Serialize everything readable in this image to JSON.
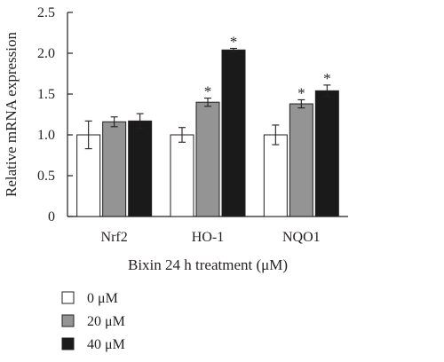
{
  "chart_data": {
    "type": "bar",
    "categories": [
      "Nrf2",
      "HO-1",
      "NQO1"
    ],
    "series": [
      {
        "name": "0 μM",
        "values": [
          1.0,
          1.0,
          1.0
        ],
        "errors": [
          0.17,
          0.09,
          0.12
        ],
        "color": "#ffffff"
      },
      {
        "name": "20 μM",
        "values": [
          1.16,
          1.4,
          1.38
        ],
        "errors": [
          0.06,
          0.05,
          0.05
        ],
        "color": "#949494"
      },
      {
        "name": "40 μM",
        "values": [
          1.17,
          2.04,
          1.54
        ],
        "errors": [
          0.09,
          0.02,
          0.07
        ],
        "color": "#1a1a1a"
      }
    ],
    "significance": [
      [
        false,
        false,
        false
      ],
      [
        false,
        true,
        true
      ],
      [
        false,
        true,
        true
      ]
    ],
    "significance_marker": "*",
    "xlabel": "Bixin 24 h treatment (μM)",
    "ylabel": "Relative mRNA expression",
    "ylim": [
      0,
      2.5
    ],
    "yticks": [
      "0",
      "0.5",
      "1.0",
      "1.5",
      "2.0",
      "2.5"
    ],
    "grid": false,
    "legend_position": "bottom-left"
  }
}
